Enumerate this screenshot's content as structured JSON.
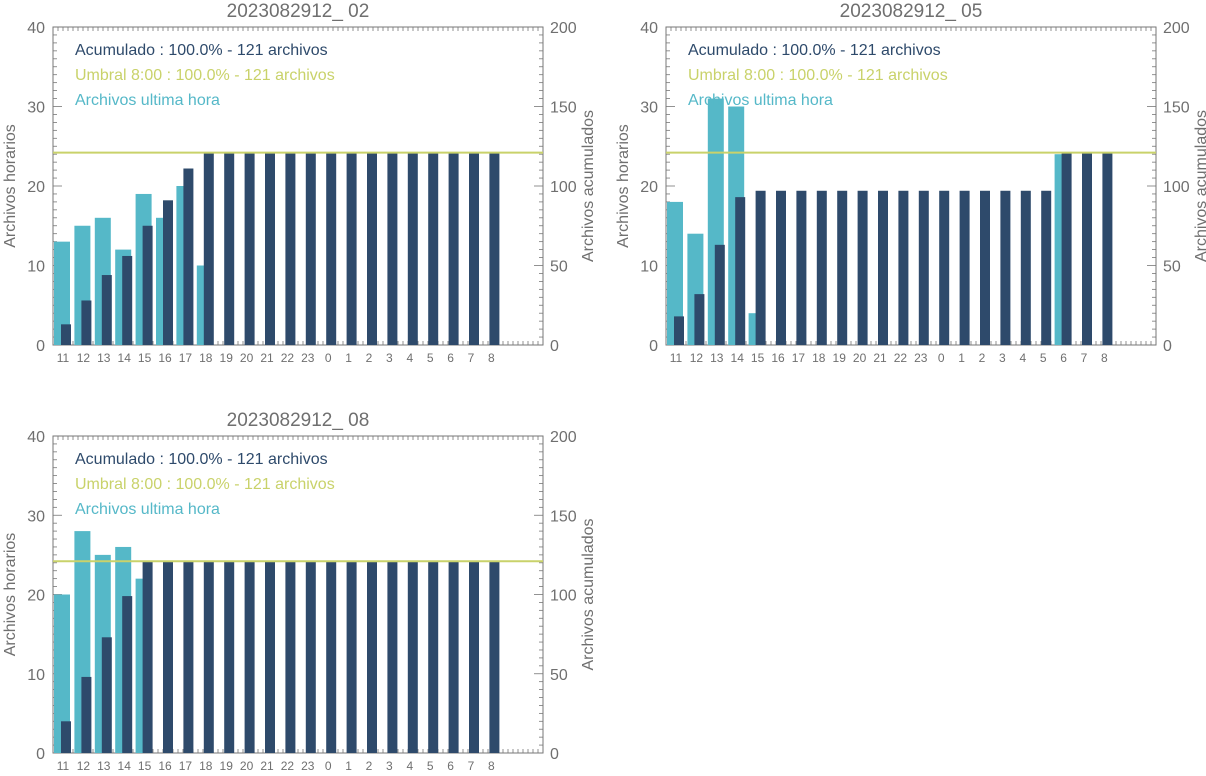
{
  "colors": {
    "hourly": "#55b8c8",
    "accumulated": "#2e4a6b",
    "threshold": "#c9d26a",
    "axis": "#777777",
    "text": "#6f6f6f"
  },
  "chart_data": [
    {
      "type": "bar",
      "title": "2023082912_ 02",
      "ylabel_left": "Archivos horarios",
      "ylabel_right": "Archivos acumulados",
      "ylim_left": [
        0,
        40
      ],
      "ylim_right": [
        0,
        200
      ],
      "yticks_left": [
        "0",
        "10",
        "20",
        "30",
        "40"
      ],
      "yticks_right": [
        "0",
        "50",
        "100",
        "150",
        "200"
      ],
      "categories": [
        "11",
        "12",
        "13",
        "14",
        "15",
        "16",
        "17",
        "18",
        "19",
        "20",
        "21",
        "22",
        "23",
        "0",
        "1",
        "2",
        "3",
        "4",
        "5",
        "6",
        "7",
        "8"
      ],
      "legend": [
        {
          "text": "Acumulado : 100.0% - 121 archivos",
          "color_key": "accumulated"
        },
        {
          "text": "Umbral 8:00 : 100.0% - 121 archivos",
          "color_key": "threshold"
        },
        {
          "text": "Archivos ultima hora",
          "color_key": "hourly"
        }
      ],
      "series": [
        {
          "name": "Archivos ultima hora",
          "axis": "left",
          "values": [
            13,
            15,
            16,
            12,
            19,
            16,
            20,
            10,
            0,
            0,
            0,
            0,
            0,
            0,
            0,
            0,
            0,
            0,
            0,
            0,
            0,
            0
          ]
        },
        {
          "name": "Acumulado",
          "axis": "right",
          "values": [
            13,
            28,
            44,
            56,
            75,
            91,
            111,
            121,
            121,
            121,
            121,
            121,
            121,
            121,
            121,
            121,
            121,
            121,
            121,
            121,
            121,
            121
          ]
        }
      ],
      "threshold_right": 121
    },
    {
      "type": "bar",
      "title": "2023082912_ 05",
      "ylabel_left": "Archivos horarios",
      "ylabel_right": "Archivos acumulados",
      "ylim_left": [
        0,
        40
      ],
      "ylim_right": [
        0,
        200
      ],
      "yticks_left": [
        "0",
        "10",
        "20",
        "30",
        "40"
      ],
      "yticks_right": [
        "0",
        "50",
        "100",
        "150",
        "200"
      ],
      "categories": [
        "11",
        "12",
        "13",
        "14",
        "15",
        "16",
        "17",
        "18",
        "19",
        "20",
        "21",
        "22",
        "23",
        "0",
        "1",
        "2",
        "3",
        "4",
        "5",
        "6",
        "7",
        "8"
      ],
      "legend": [
        {
          "text": "Acumulado : 100.0% - 121 archivos",
          "color_key": "accumulated"
        },
        {
          "text": "Umbral 8:00 : 100.0% - 121 archivos",
          "color_key": "threshold"
        },
        {
          "text": "Archivos ultima hora",
          "color_key": "hourly"
        }
      ],
      "series": [
        {
          "name": "Archivos ultima hora",
          "axis": "left",
          "values": [
            18,
            14,
            31,
            30,
            4,
            0,
            0,
            0,
            0,
            0,
            0,
            0,
            0,
            0,
            0,
            0,
            0,
            0,
            0,
            24,
            0,
            0
          ]
        },
        {
          "name": "Acumulado",
          "axis": "right",
          "values": [
            18,
            32,
            63,
            93,
            97,
            97,
            97,
            97,
            97,
            97,
            97,
            97,
            97,
            97,
            97,
            97,
            97,
            97,
            97,
            121,
            121,
            121
          ]
        }
      ],
      "threshold_right": 121
    },
    {
      "type": "bar",
      "title": "2023082912_ 08",
      "ylabel_left": "Archivos horarios",
      "ylabel_right": "Archivos acumulados",
      "ylim_left": [
        0,
        40
      ],
      "ylim_right": [
        0,
        200
      ],
      "yticks_left": [
        "0",
        "10",
        "20",
        "30",
        "40"
      ],
      "yticks_right": [
        "0",
        "50",
        "100",
        "150",
        "200"
      ],
      "categories": [
        "11",
        "12",
        "13",
        "14",
        "15",
        "16",
        "17",
        "18",
        "19",
        "20",
        "21",
        "22",
        "23",
        "0",
        "1",
        "2",
        "3",
        "4",
        "5",
        "6",
        "7",
        "8"
      ],
      "legend": [
        {
          "text": "Acumulado : 100.0% - 121 archivos",
          "color_key": "accumulated"
        },
        {
          "text": "Umbral 8:00 : 100.0% - 121 archivos",
          "color_key": "threshold"
        },
        {
          "text": "Archivos ultima hora",
          "color_key": "hourly"
        }
      ],
      "series": [
        {
          "name": "Archivos ultima hora",
          "axis": "left",
          "values": [
            20,
            28,
            25,
            26,
            22,
            0,
            0,
            0,
            0,
            0,
            0,
            0,
            0,
            0,
            0,
            0,
            0,
            0,
            0,
            0,
            0,
            0
          ]
        },
        {
          "name": "Acumulado",
          "axis": "right",
          "values": [
            20,
            48,
            73,
            99,
            121,
            121,
            121,
            121,
            121,
            121,
            121,
            121,
            121,
            121,
            121,
            121,
            121,
            121,
            121,
            121,
            121,
            121
          ]
        }
      ],
      "threshold_right": 121
    }
  ]
}
